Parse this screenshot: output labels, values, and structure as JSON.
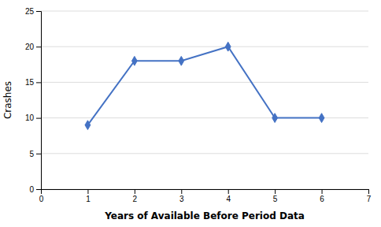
{
  "chart_data": {
    "type": "line",
    "x": [
      1,
      2,
      3,
      4,
      5,
      6
    ],
    "values": [
      9,
      18,
      18,
      20,
      10,
      10
    ],
    "color": "#4472C4",
    "marker": "diamond",
    "xlabel": "Years of Available Before Period Data",
    "ylabel": "Crashes",
    "xlim": [
      0,
      7
    ],
    "ylim": [
      0,
      25
    ],
    "xticks": [
      0,
      1,
      2,
      3,
      4,
      5,
      6,
      7
    ],
    "yticks": [
      0,
      5,
      10,
      15,
      20,
      25
    ],
    "grid": "y"
  }
}
